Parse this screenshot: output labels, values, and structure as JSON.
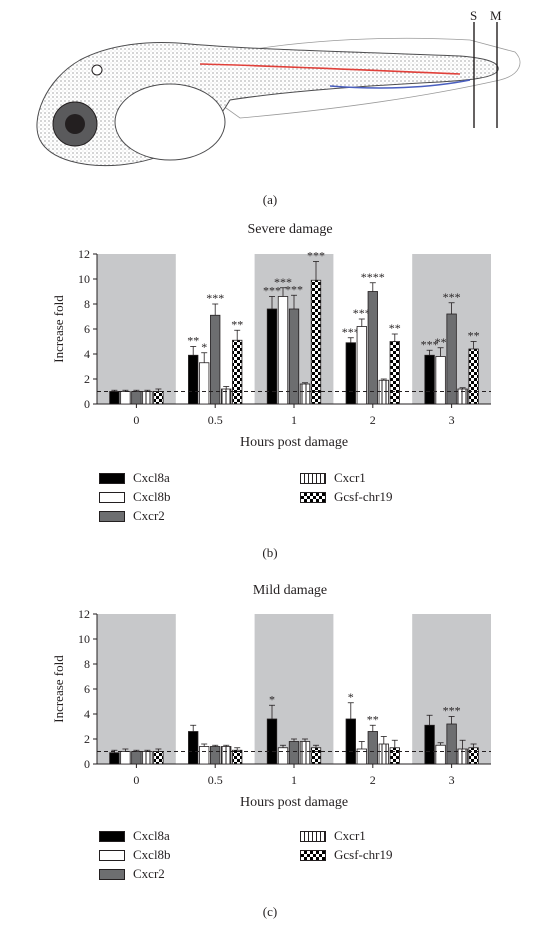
{
  "panel_a": {
    "label": "(a)",
    "marker_s": "S",
    "marker_m": "M"
  },
  "colors": {
    "Cxcl8a": "#000000",
    "Cxcl8b": "#ffffff",
    "Cxcr2": "#6d6e70",
    "band": "#c7c8ca",
    "red_vessel": "#e0403a",
    "blue_vessel": "#4a5fbf"
  },
  "chart_data": [
    {
      "type": "bar",
      "panel": "(b)",
      "title": "Severe damage",
      "xlabel": "Hours post damage",
      "ylabel": "Increase fold",
      "ylim": [
        0,
        12
      ],
      "yticks": [
        0,
        2,
        4,
        6,
        8,
        10,
        12
      ],
      "categories": [
        "0",
        "0.5",
        "1",
        "2",
        "3"
      ],
      "shaded_groups": [
        "0",
        "1",
        "3"
      ],
      "baseline": 1,
      "series": [
        {
          "name": "Cxcl8a",
          "values": [
            1.0,
            3.9,
            7.6,
            4.9,
            3.9
          ],
          "errors": [
            0.1,
            0.7,
            1.0,
            0.4,
            0.4
          ],
          "sig": [
            "",
            "**",
            "***",
            "***",
            "***"
          ]
        },
        {
          "name": "Cxcl8b",
          "values": [
            1.0,
            3.3,
            8.6,
            6.2,
            3.8
          ],
          "errors": [
            0.1,
            0.8,
            0.7,
            0.6,
            0.7
          ],
          "sig": [
            "",
            "*",
            "***",
            "***",
            "**"
          ]
        },
        {
          "name": "Cxcr2",
          "values": [
            1.0,
            7.1,
            7.6,
            9.0,
            7.2
          ],
          "errors": [
            0.1,
            0.9,
            1.1,
            0.7,
            0.9
          ],
          "sig": [
            "",
            "***",
            "***",
            "****",
            "***"
          ]
        },
        {
          "name": "Cxcr1",
          "values": [
            1.0,
            1.2,
            1.6,
            1.9,
            1.2
          ],
          "errors": [
            0.1,
            0.2,
            0.1,
            0.1,
            0.1
          ],
          "sig": [
            "",
            "",
            "",
            "",
            ""
          ]
        },
        {
          "name": "Gcsf-chr19",
          "values": [
            1.0,
            5.1,
            9.9,
            5.0,
            4.4
          ],
          "errors": [
            0.2,
            0.8,
            1.5,
            0.6,
            0.6
          ],
          "sig": [
            "",
            "**",
            "***",
            "**",
            "**"
          ]
        }
      ]
    },
    {
      "type": "bar",
      "panel": "(c)",
      "title": "Mild damage",
      "xlabel": "Hours post damage",
      "ylabel": "Increase fold",
      "ylim": [
        0,
        12
      ],
      "yticks": [
        0,
        2,
        4,
        6,
        8,
        10,
        12
      ],
      "categories": [
        "0",
        "0.5",
        "1",
        "2",
        "3"
      ],
      "shaded_groups": [
        "0",
        "1",
        "3"
      ],
      "baseline": 1,
      "series": [
        {
          "name": "Cxcl8a",
          "values": [
            0.9,
            2.6,
            3.6,
            3.6,
            3.1
          ],
          "errors": [
            0.2,
            0.5,
            1.1,
            1.3,
            0.8
          ],
          "sig": [
            "",
            "",
            "*",
            "*",
            ""
          ]
        },
        {
          "name": "Cxcl8b",
          "values": [
            1.0,
            1.4,
            1.3,
            1.2,
            1.5
          ],
          "errors": [
            0.2,
            0.2,
            0.2,
            0.6,
            0.2
          ],
          "sig": [
            "",
            "",
            "",
            "",
            ""
          ]
        },
        {
          "name": "Cxcr2",
          "values": [
            1.0,
            1.4,
            1.8,
            2.6,
            3.2
          ],
          "errors": [
            0.1,
            0.1,
            0.2,
            0.5,
            0.6
          ],
          "sig": [
            "",
            "",
            "",
            "**",
            "***"
          ]
        },
        {
          "name": "Cxcr1",
          "values": [
            1.0,
            1.4,
            1.8,
            1.6,
            1.2
          ],
          "errors": [
            0.1,
            0.1,
            0.2,
            0.6,
            0.7
          ],
          "sig": [
            "",
            "",
            "",
            "",
            ""
          ]
        },
        {
          "name": "Gcsf-chr19",
          "values": [
            1.0,
            1.1,
            1.3,
            1.3,
            1.3
          ],
          "errors": [
            0.2,
            0.2,
            0.2,
            0.6,
            0.3
          ],
          "sig": [
            "",
            "",
            "",
            "",
            ""
          ]
        }
      ]
    }
  ]
}
